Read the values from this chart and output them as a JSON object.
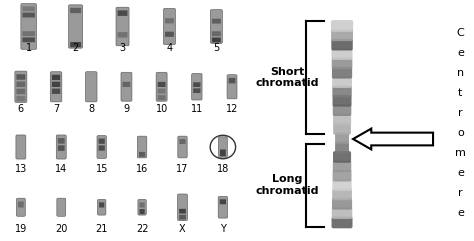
{
  "bg_color": "#ffffff",
  "karyotype_labels": [
    {
      "num": "1",
      "row": 0,
      "col": 0
    },
    {
      "num": "2",
      "row": 0,
      "col": 1
    },
    {
      "num": "3",
      "row": 0,
      "col": 2
    },
    {
      "num": "4",
      "row": 0,
      "col": 3
    },
    {
      "num": "5",
      "row": 0,
      "col": 4
    },
    {
      "num": "6",
      "row": 1,
      "col": 0
    },
    {
      "num": "7",
      "row": 1,
      "col": 1
    },
    {
      "num": "8",
      "row": 1,
      "col": 2
    },
    {
      "num": "9",
      "row": 1,
      "col": 3
    },
    {
      "num": "10",
      "row": 1,
      "col": 4
    },
    {
      "num": "11",
      "row": 1,
      "col": 5
    },
    {
      "num": "12",
      "row": 1,
      "col": 6
    },
    {
      "num": "13",
      "row": 2,
      "col": 0
    },
    {
      "num": "14",
      "row": 2,
      "col": 1
    },
    {
      "num": "15",
      "row": 2,
      "col": 2
    },
    {
      "num": "16",
      "row": 2,
      "col": 3
    },
    {
      "num": "17",
      "row": 2,
      "col": 4
    },
    {
      "num": "18",
      "row": 2,
      "col": 5
    },
    {
      "num": "19",
      "row": 3,
      "col": 0
    },
    {
      "num": "20",
      "row": 3,
      "col": 1
    },
    {
      "num": "21",
      "row": 3,
      "col": 2
    },
    {
      "num": "22",
      "row": 3,
      "col": 3
    },
    {
      "num": "X",
      "row": 3,
      "col": 4
    },
    {
      "num": "Y",
      "row": 3,
      "col": 5
    }
  ],
  "short_chromatid_label": "Short\nchromatid",
  "long_chromatid_label": "Long\nchromatid",
  "centromere_label": "C\ne\nn\nt\nr\no\nm\ne\nr\ne",
  "label_fontsize": 8,
  "number_fontsize": 7,
  "centromere_fontsize": 8,
  "arrow_color": "#000000",
  "bracket_color": "#000000",
  "text_color": "#000000",
  "chromosome_gray": "#888888"
}
